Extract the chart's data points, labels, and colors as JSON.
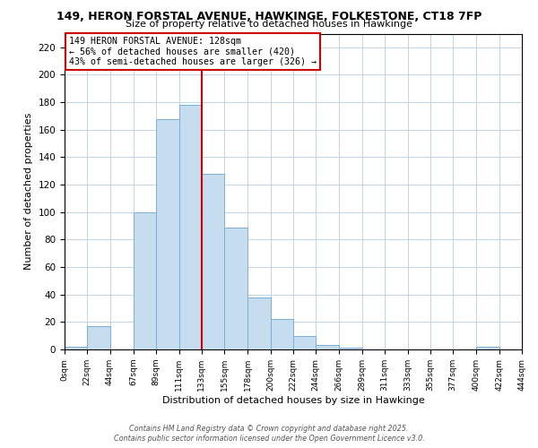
{
  "title": "149, HERON FORSTAL AVENUE, HAWKINGE, FOLKESTONE, CT18 7FP",
  "subtitle": "Size of property relative to detached houses in Hawkinge",
  "xlabel": "Distribution of detached houses by size in Hawkinge",
  "ylabel": "Number of detached properties",
  "bar_color": "#c6ddf0",
  "bar_edge_color": "#7bafd4",
  "background_color": "#ffffff",
  "grid_color": "#b8cfe0",
  "annotation_box_color": "#ffffff",
  "annotation_box_edge": "#cc0000",
  "vline_color": "#cc0000",
  "vline_x": 133,
  "annotation_line1": "149 HERON FORSTAL AVENUE: 128sqm",
  "annotation_line2": "← 56% of detached houses are smaller (420)",
  "annotation_line3": "43% of semi-detached houses are larger (326) →",
  "footer_line1": "Contains HM Land Registry data © Crown copyright and database right 2025.",
  "footer_line2": "Contains public sector information licensed under the Open Government Licence v3.0.",
  "bin_edges": [
    0,
    22,
    44,
    67,
    89,
    111,
    133,
    155,
    178,
    200,
    222,
    244,
    266,
    289,
    311,
    333,
    355,
    377,
    400,
    422,
    444
  ],
  "bin_counts": [
    2,
    17,
    0,
    100,
    168,
    178,
    128,
    89,
    38,
    22,
    10,
    3,
    1,
    0,
    0,
    0,
    0,
    0,
    2,
    0
  ],
  "ylim": [
    0,
    230
  ],
  "yticks": [
    0,
    20,
    40,
    60,
    80,
    100,
    120,
    140,
    160,
    180,
    200,
    220
  ]
}
